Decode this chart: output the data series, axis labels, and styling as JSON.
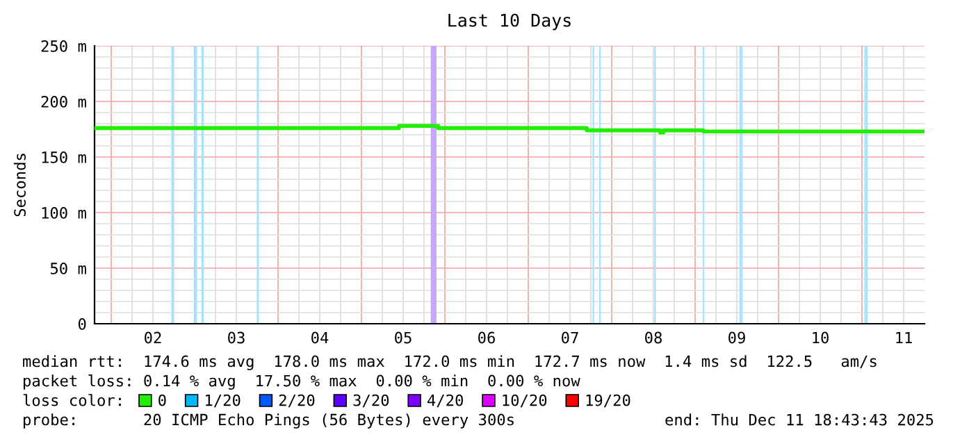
{
  "chart_data": {
    "type": "step",
    "title": "Last 10 Days",
    "ylabel": "Seconds",
    "legend_title": "loss color:",
    "x": [
      1.8,
      5.45,
      5.92,
      7.7,
      8.58,
      8.62,
      9.1,
      11.75
    ],
    "series": [
      {
        "name": "0",
        "color": "#22ee00",
        "values": [
          176,
          178,
          176,
          174,
          172,
          174,
          173,
          173
        ]
      },
      {
        "name": "1/20",
        "color": "#00b8ff",
        "values": [
          null,
          null,
          null,
          null,
          null,
          null,
          null,
          null
        ]
      },
      {
        "name": "2/20",
        "color": "#0059ff",
        "values": [
          null,
          null,
          null,
          null,
          null,
          null,
          null,
          null
        ]
      },
      {
        "name": "3/20",
        "color": "#5e00ff",
        "values": [
          null,
          null,
          null,
          null,
          null,
          null,
          null,
          null
        ]
      },
      {
        "name": "4/20",
        "color": "#7e00ff",
        "values": [
          null,
          null,
          null,
          null,
          null,
          null,
          null,
          null
        ]
      },
      {
        "name": "10/20",
        "color": "#dd00ff",
        "values": [
          null,
          null,
          null,
          null,
          null,
          null,
          null,
          null
        ]
      },
      {
        "name": "19/20",
        "color": "#ff0000",
        "values": [
          null,
          null,
          null,
          null,
          null,
          null,
          null,
          null
        ]
      }
    ],
    "xlim": [
      1.8,
      11.75
    ],
    "xticks": [
      {
        "value": 2.5,
        "label": "02"
      },
      {
        "value": 3.5,
        "label": "03"
      },
      {
        "value": 4.5,
        "label": "04"
      },
      {
        "value": 5.5,
        "label": "05"
      },
      {
        "value": 6.5,
        "label": "06"
      },
      {
        "value": 7.5,
        "label": "07"
      },
      {
        "value": 8.5,
        "label": "08"
      },
      {
        "value": 9.5,
        "label": "09"
      },
      {
        "value": 10.5,
        "label": "10"
      },
      {
        "value": 11.5,
        "label": "11"
      }
    ],
    "ylim": [
      0,
      250
    ],
    "yticks": [
      0,
      {
        "value": 50,
        "label": "50 m"
      },
      {
        "value": 100,
        "label": "100 m"
      },
      {
        "value": 150,
        "label": "150 m"
      },
      {
        "value": 200,
        "label": "200 m"
      },
      {
        "value": 250,
        "label": "250 m"
      }
    ],
    "grid": true,
    "legend": "bottom",
    "bands": [
      {
        "axis": "x",
        "from": 2.72,
        "to": 2.75,
        "color": "#a8e4ff"
      },
      {
        "axis": "x",
        "from": 3.0,
        "to": 3.03,
        "color": "#a8e4ff"
      },
      {
        "axis": "x",
        "from": 3.08,
        "to": 3.11,
        "color": "#a8e4ff"
      },
      {
        "axis": "x",
        "from": 3.75,
        "to": 3.77,
        "color": "#a8e4ff"
      },
      {
        "axis": "x",
        "from": 5.83,
        "to": 5.9,
        "color": "#c8a8ff"
      },
      {
        "axis": "x",
        "from": 7.77,
        "to": 7.79,
        "color": "#a8e4ff"
      },
      {
        "axis": "x",
        "from": 7.85,
        "to": 7.87,
        "color": "#a8e4ff"
      },
      {
        "axis": "x",
        "from": 8.51,
        "to": 8.53,
        "color": "#a8e4ff"
      },
      {
        "axis": "x",
        "from": 9.09,
        "to": 9.11,
        "color": "#a8e4ff"
      },
      {
        "axis": "x",
        "from": 9.53,
        "to": 9.57,
        "color": "#a8e4ff"
      },
      {
        "axis": "x",
        "from": 11.03,
        "to": 11.07,
        "color": "#a8e4ff"
      }
    ],
    "annotations": [
      "median rtt:  174.6 ms avg  178.0 ms max  172.0 ms min  172.7 ms now  1.4 ms sd  122.5   am/s",
      "packet loss: 0.14 % avg  17.50 % max  0.00 % min  0.00 % now",
      "probe:       20 ICMP Echo Pings (56 Bytes) every 300s",
      "end: Thu Dec 11 18:43:43 2025"
    ]
  }
}
